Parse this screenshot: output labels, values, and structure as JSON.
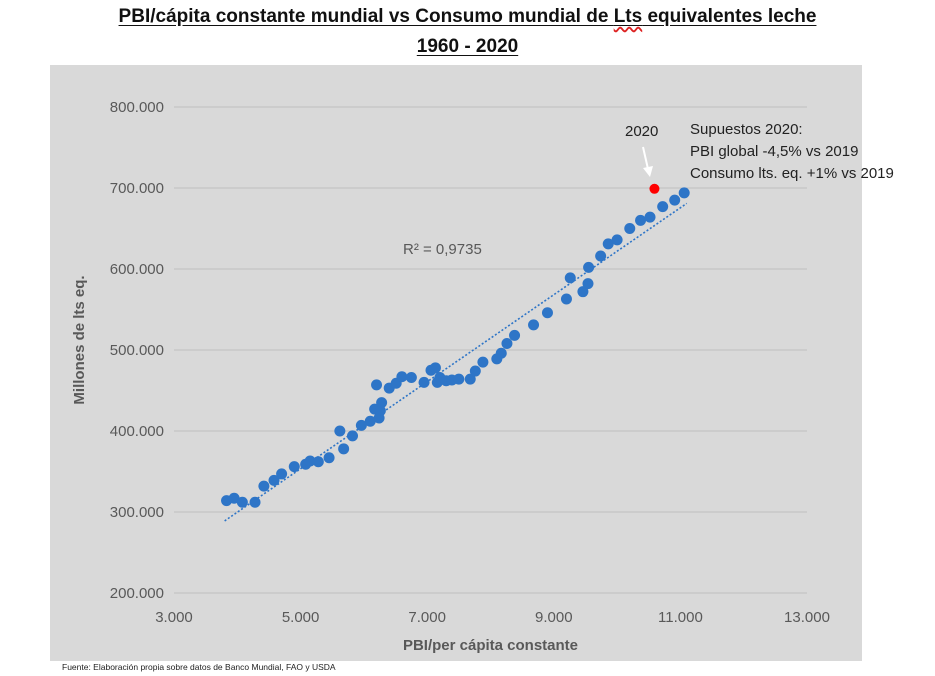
{
  "header": {
    "title_pre": "PBI/cápita constante mundial vs Consumo mundial de ",
    "title_squiggle": "Lts",
    "title_post": " equivalentes leche",
    "subtitle": "1960 - 2020"
  },
  "footer": "Fuente: Elaboración propia sobre datos de Banco Mundial, FAO y USDA",
  "annotation": {
    "label_2020": "2020",
    "note_line1": "Supuestos 2020:",
    "note_line2": "PBI global -4,5% vs 2019",
    "note_line3": "Consumo lts. eq. +1% vs 2019",
    "r2": "R² = 0,9735"
  },
  "colors": {
    "plot_bg": "#d9d9d9",
    "points": "#2e75c7",
    "highlight_2020": "#ff0000",
    "trendline": "#2e75c7",
    "gridline": "#bfbfbf"
  },
  "chart_data": {
    "type": "scatter",
    "xlabel": "PBI/per cápita constante",
    "ylabel": "Millones de lts eq.",
    "xlim": [
      3000,
      13000
    ],
    "ylim": [
      200000,
      800000
    ],
    "x_ticks": [
      3000,
      5000,
      7000,
      9000,
      11000,
      13000
    ],
    "x_tick_labels": [
      "3.000",
      "5.000",
      "7.000",
      "9.000",
      "11.000",
      "13.000"
    ],
    "y_ticks": [
      200000,
      300000,
      400000,
      500000,
      600000,
      700000,
      800000
    ],
    "y_tick_labels": [
      "200.000",
      "300.000",
      "400.000",
      "500.000",
      "600.000",
      "700.000",
      "800.000"
    ],
    "grid": "horizontal",
    "legend": "none",
    "series": [
      {
        "points": [
          [
            3830,
            314000
          ],
          [
            3950,
            317000
          ],
          [
            4080,
            312000
          ],
          [
            4280,
            312000
          ],
          [
            4420,
            332000
          ],
          [
            4580,
            339000
          ],
          [
            4700,
            347000
          ],
          [
            4900,
            356000
          ],
          [
            5080,
            359000
          ],
          [
            5150,
            363000
          ],
          [
            5280,
            362000
          ],
          [
            5450,
            367000
          ],
          [
            5620,
            400000
          ],
          [
            5680,
            378000
          ],
          [
            5820,
            394000
          ],
          [
            5960,
            407000
          ],
          [
            6100,
            412000
          ],
          [
            6170,
            427000
          ],
          [
            6200,
            457000
          ],
          [
            6240,
            416000
          ],
          [
            6260,
            425000
          ],
          [
            6280,
            435000
          ],
          [
            6400,
            453000
          ],
          [
            6510,
            459000
          ],
          [
            6600,
            467000
          ],
          [
            6750,
            466000
          ],
          [
            6950,
            460000
          ],
          [
            7060,
            475000
          ],
          [
            7130,
            478000
          ],
          [
            7160,
            460000
          ],
          [
            7200,
            466000
          ],
          [
            7300,
            462000
          ],
          [
            7390,
            463000
          ],
          [
            7500,
            464000
          ],
          [
            7680,
            464000
          ],
          [
            7760,
            474000
          ],
          [
            7880,
            485000
          ],
          [
            8100,
            489000
          ],
          [
            8170,
            496000
          ],
          [
            8260,
            508000
          ],
          [
            8380,
            518000
          ],
          [
            8680,
            531000
          ],
          [
            8900,
            546000
          ],
          [
            9200,
            563000
          ],
          [
            9260,
            589000
          ],
          [
            9460,
            572000
          ],
          [
            9540,
            582000
          ],
          [
            9550,
            602000
          ],
          [
            9740,
            616000
          ],
          [
            9860,
            631000
          ],
          [
            10000,
            636000
          ],
          [
            10200,
            650000
          ],
          [
            10370,
            660000
          ],
          [
            10520,
            664000
          ],
          [
            10720,
            677000
          ],
          [
            10910,
            685000
          ],
          [
            11060,
            694000
          ]
        ]
      },
      {
        "points": [
          [
            10590,
            699000
          ]
        ]
      }
    ],
    "trendline": {
      "x": [
        3800,
        11100
      ],
      "y": [
        289000,
        681000
      ],
      "r2": 0.9735
    }
  }
}
